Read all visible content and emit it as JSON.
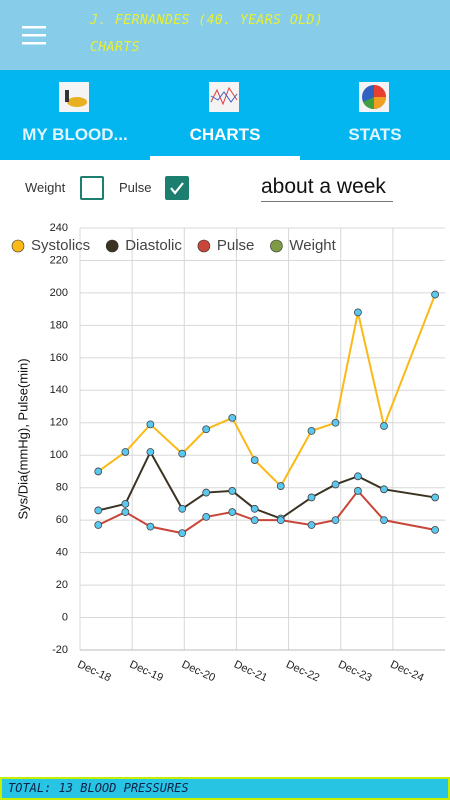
{
  "app_bar": {
    "title": "J. FERNANDES (40. YEARS OLD)",
    "subtitle": "CHARTS"
  },
  "tabs": [
    "MY BLOOD...",
    "CHARTS",
    "STATS"
  ],
  "controls": {
    "weight_label": "Weight",
    "weight_checked": false,
    "pulse_label": "Pulse",
    "pulse_checked": true,
    "range": "about a week"
  },
  "chart_data": {
    "type": "line",
    "y_label": "Sys/Dia(mmHg), Pulse(min)",
    "x": [
      18.35,
      18.87,
      19.35,
      19.96,
      20.42,
      20.92,
      21.35,
      21.85,
      22.44,
      22.9,
      23.33,
      23.83,
      24.81
    ],
    "series": [
      {
        "name": "Systolics",
        "color": "#fbb917",
        "values": [
          90,
          102,
          119,
          101,
          116,
          123,
          97,
          81,
          115,
          120,
          188,
          118,
          199
        ]
      },
      {
        "name": "Diastolic",
        "color": "#3a3322",
        "values": [
          66,
          70,
          102,
          67,
          77,
          78,
          67,
          61,
          74,
          82,
          87,
          79,
          74
        ]
      },
      {
        "name": "Pulse",
        "color": "#c8463a",
        "values": [
          57,
          65,
          56,
          52,
          62,
          65,
          60,
          60,
          57,
          60,
          78,
          60,
          54
        ]
      },
      {
        "name": "Weight",
        "color": "#7f9a45",
        "values": [
          null,
          null,
          null,
          null,
          null,
          null,
          null,
          null,
          null,
          null,
          null,
          null,
          null
        ]
      }
    ],
    "marker_color": "#5bc8f0",
    "xlim": [
      18,
      25
    ],
    "xticks": [
      {
        "value": 18,
        "label": "Dec-18"
      },
      {
        "value": 19,
        "label": "Dec-19"
      },
      {
        "value": 20,
        "label": "Dec-20"
      },
      {
        "value": 21,
        "label": "Dec-21"
      },
      {
        "value": 22,
        "label": "Dec-22"
      },
      {
        "value": 23,
        "label": "Dec-23"
      },
      {
        "value": 24,
        "label": "Dec-24"
      }
    ],
    "ylim": [
      -20,
      240
    ],
    "yticks": [
      -20,
      0,
      20,
      40,
      60,
      80,
      100,
      120,
      140,
      160,
      180,
      200,
      220,
      240
    ],
    "grid": true,
    "legend": "top-left"
  },
  "footer": "TOTAL: 13 BLOOD PRESSURES"
}
